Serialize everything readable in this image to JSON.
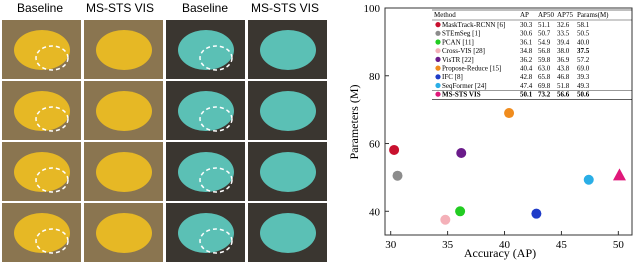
{
  "panel_labels": [
    "Baseline",
    "MS-STS VIS",
    "Baseline",
    "MS-STS VIS"
  ],
  "chart_data": {
    "type": "scatter",
    "xlabel": "Accuracy (AP)",
    "ylabel": "Parameters (M)",
    "xlim": [
      29.5,
      51.2
    ],
    "ylim": [
      33,
      100
    ],
    "xticks": [
      30,
      35,
      40,
      45,
      50
    ],
    "yticks": [
      40,
      60,
      80,
      100
    ],
    "table": {
      "columns": [
        "Method",
        "AP",
        "AP50",
        "AP75",
        "Params(M)"
      ],
      "rows": [
        [
          "MaskTrack-RCNN [6]",
          "30.3",
          "51.1",
          "32.6",
          "58.1"
        ],
        [
          "STEmSeg [1]",
          "30.6",
          "50.7",
          "33.5",
          "50.5"
        ],
        [
          "PCAN [11]",
          "36.1",
          "54.9",
          "39.4",
          "40.0"
        ],
        [
          "Cross-VIS [28]",
          "34.8",
          "56.8",
          "38.0",
          "37.5"
        ],
        [
          "VisTR [22]",
          "36.2",
          "59.8",
          "36.9",
          "57.2"
        ],
        [
          "Propose-Reduce [15]",
          "40.4",
          "63.0",
          "43.8",
          "69.0"
        ],
        [
          "IFC [8]",
          "42.8",
          "65.8",
          "46.8",
          "39.3"
        ],
        [
          "SeqFormer [24]",
          "47.4",
          "69.8",
          "51.8",
          "49.3"
        ],
        [
          "MS-STS VIS",
          "50.1",
          "73.2",
          "56.6",
          "50.6"
        ]
      ],
      "colors": [
        "#c8102e",
        "#8c8c8c",
        "#22cc22",
        "#f4b0b8",
        "#6a1b8a",
        "#f08c1e",
        "#1f3cc8",
        "#2aaee6",
        "#e0187a"
      ],
      "markers": [
        "circle",
        "circle",
        "circle",
        "circle",
        "circle",
        "circle",
        "circle",
        "circle",
        "triangle"
      ]
    }
  }
}
